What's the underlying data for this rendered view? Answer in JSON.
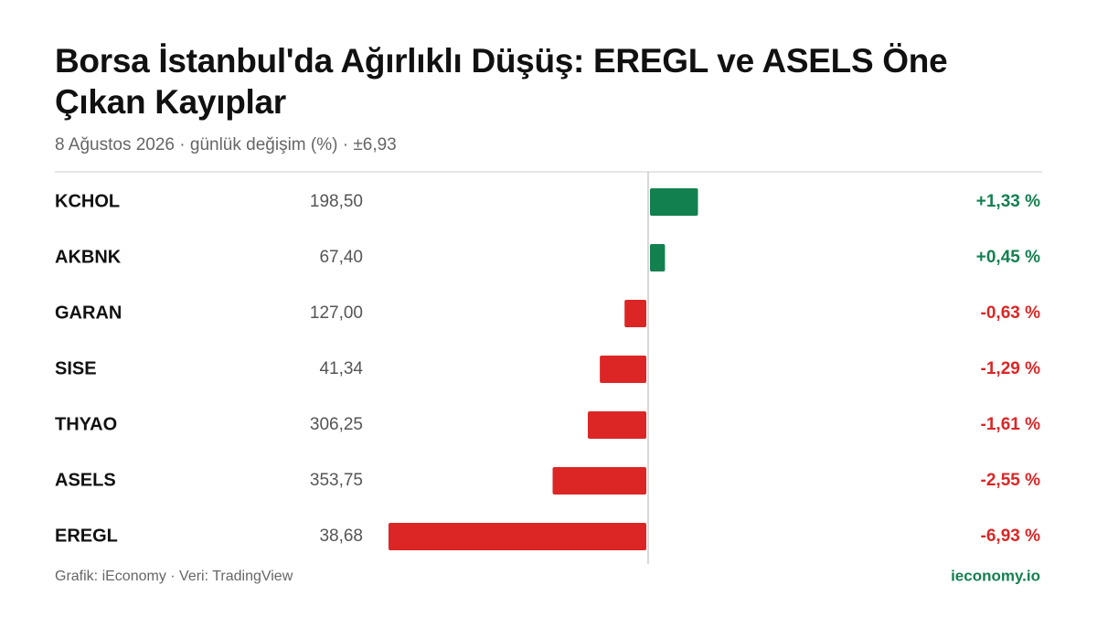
{
  "chart_data": {
    "type": "bar",
    "orientation": "horizontal",
    "title": "Borsa İstanbul'da Ağırlıklı Düşüş: EREGL ve ASELS Öne Çıkan Kayıplar",
    "subtitle": "8 Ağustos 2026 · günlük değişim (%) · ±6,93",
    "categories": [
      "KCHOL",
      "AKBNK",
      "GARAN",
      "SISE",
      "THYAO",
      "ASELS",
      "EREGL"
    ],
    "prices": [
      "198,50",
      "67,40",
      "127,00",
      "41,34",
      "306,25",
      "353,75",
      "38,68"
    ],
    "values": [
      1.33,
      0.45,
      -0.63,
      -1.29,
      -1.61,
      -2.55,
      -6.93
    ],
    "value_labels": [
      "+1,33 %",
      "+0,45 %",
      "-0,63 %",
      "-1,29 %",
      "-1,61 %",
      "-2,55 %",
      "-6,93 %"
    ],
    "positive_color": "#13804f",
    "negative_color": "#dc2626",
    "xlim": [
      -6.93,
      6.93
    ],
    "source": "Grafik: iEconomy · Veri: TradingView",
    "brand": "ieconomy.io"
  }
}
